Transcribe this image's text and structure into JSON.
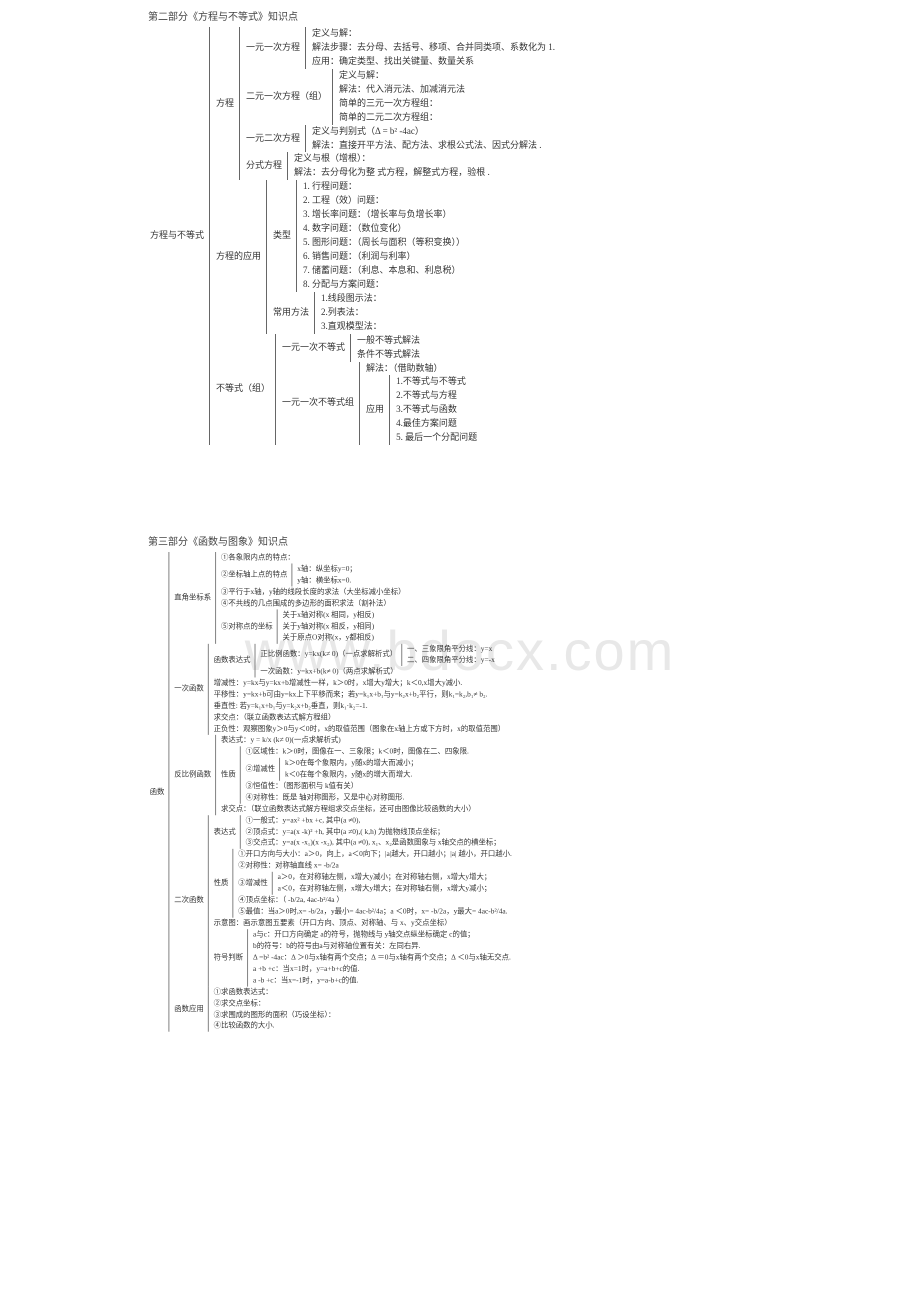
{
  "watermark": "www.bdocx.com",
  "part2": {
    "title": "第二部分《方程与不等式》知识点",
    "root": "方程与不等式",
    "fangcheng": {
      "label": "方程",
      "yiyuan": {
        "label": "一元一次方程",
        "l1": "定义与解：",
        "l2": "解法步骤：去分母、去括号、移项、合并同类项、系数化为  1.",
        "l3": "应用：确定类型、找出关键量、数量关系"
      },
      "eryuan": {
        "label": "二元一次方程（组）",
        "l1": "定义与解：",
        "l2": "解法：代入消元法、加减消元法",
        "l3": "简单的三元一次方程组：",
        "l4": "简单的二元二次方程组："
      },
      "yierci": {
        "label": "一元二次方程",
        "l1": "定义与判别式（Δ = b² -4ac）",
        "l2": "解法：直接开平方法、配方法、求根公式法、因式分解法  ."
      },
      "fenshi": {
        "label": "分式方程",
        "l1": "定义与根（增根）：",
        "l2": "解法：去分母化为整 式方程，解整式方程，验根  ."
      }
    },
    "yingyong": {
      "label": "方程的应用",
      "leixing": {
        "label": "类型",
        "i1": "1. 行程问题：",
        "i2": "2. 工程（效）问题：",
        "i3": "3. 增长率问题：（增长率与负增长率）",
        "i4": "4. 数字问题：（数位变化）",
        "i5": "5. 图形问题：（周长与面积（等积变换））",
        "i6": "6. 销售问题：（利润与利率）",
        "i7": "7. 储蓄问题：（利息、本息和、利息税）",
        "i8": "8. 分配与方案问题："
      },
      "fangfa": {
        "label": "常用方法",
        "i1": "1.线段图示法：",
        "i2": "2.列表法：",
        "i3": "3.直观模型法："
      }
    },
    "budengshi": {
      "label": "不等式（组）",
      "yiyuan": {
        "label": "一元一次不等式",
        "l1": "一般不等式解法",
        "l2": "条件不等式解法"
      },
      "zu": {
        "label": "一元一次不等式组",
        "l1": "解法：（借助数轴）",
        "yy": {
          "label": "应用",
          "i1": "1.不等式与不等式",
          "i2": "2.不等式与方程",
          "i3": "3.不等式与函数",
          "i4": "4.最佳方案问题",
          "i5": "5. 最后一个分配问题"
        }
      }
    }
  },
  "part3": {
    "title": "第三部分《函数与图象》知识点",
    "root": "函数",
    "zbx": {
      "label": "直角坐标系",
      "l1": "①各象限内点的特点：",
      "l2a": "②坐标轴上点的特点",
      "l2b": "x轴：纵坐标y=0；",
      "l2c": "y轴：横坐标x=0.",
      "l3": "③平行于x轴，y轴的线段长度的求法（大坐标减小坐标）",
      "l4": "④不共线的几点围成的多边形的面积求法（割补法）",
      "l5a": "⑤对称点的坐标",
      "l5b": "关于x轴对称(x 相同，y相反)",
      "l5c": "关于y轴对称(x 相反，y相同)",
      "l5d": "关于原点O对称(x，y都相反)"
    },
    "yici": {
      "label": "一次函数",
      "bds": {
        "label": "函数表达式",
        "zh": "正比例函数：y=kx(k≠ 0)（一点求解析式）",
        "zh1": "一、三象限角平分线：y=x",
        "zh2": "二、四象限角平分线：y=-x",
        "yc": "一次函数：y=kx+b(k≠ 0)（两点求解析式）"
      },
      "l1": "增减性：y=kx与y=kx+b增减性一样，k＞0时，x增大y增大；k＜0,x增大y减小.",
      "l2": "平移性：y=kx+b可由y=kx上下平移而来；若y=k₁x+b₁与y=k₂x+b₂平行，则k₁=k₂,b₁≠ b₂.",
      "l3": "垂直性:  若y=k₁x+b₁与y=k₂x+b₂垂直，则k₁·k₂=-1.",
      "l4": "求交点：（联立函数表达式解方程组）",
      "l5": "正负性：观察图象y＞0与y＜0时，x的取值范围（图象在x轴上方或下方时，x的取值范围）"
    },
    "fbl": {
      "label": "反比例函数",
      "bds": "表达式：y = k/x (k≠ 0)(一点求解析式)",
      "xz": {
        "label": "性质",
        "l1": "①区域性：k＞0时，图像在一、三象限；k＜0时，图像在二、四象限.",
        "l2a": "②增减性",
        "l2b": "k＞0在每个象限内，y随x的增大而减小；",
        "l2c": "k＜0在每个象限内，y随x的增大而增大.",
        "l3": "③恒值性：（图形面积与 k值有关）",
        "l4": "④对称性：既是 轴对称图形，又是中心对称图形."
      },
      "jd": "求交点：（联立函数表达式解方程组求交点坐标，还可由图像比较函数的大小）"
    },
    "erci": {
      "label": "二次函数",
      "bds": {
        "label": "表达式",
        "l1": "①一般式：y=ax² +bx +c, 其中(a ≠0),",
        "l2": "②顶点式：y=a(x -k)² +h, 其中(a ≠0),( k,h) 为抛物线顶点坐标；",
        "l3": "③交点式：y=a(x -x₁)(x -x₂), 其中(a ≠0),  x₁、x₂是函数图象与 x轴交点的横坐标；"
      },
      "xz": {
        "label": "性质",
        "l1": "①开口方向与大小：a＞0，向上，a＜0向下；|a|越大，开口越小；|a| 越小，开口越小.",
        "l2": "②对称性：对称轴直线 x= -b/2a",
        "l3a": "③增减性",
        "l3b": "a＞0，在对称轴左侧，x增大y减小；在对称轴右侧，x增大y增大；",
        "l3c": "a＜0，在对称轴左侧，x增大y增大；在对称轴右侧，x增大y减小；",
        "l4": "④顶点坐标：（ -b/2a, 4ac-b²/4a ）",
        "l5": "⑤最值：当a＞0时,x= -b/2a，y最小= 4ac-b²/4a；a ＜0时，x= -b/2a，y最大= 4ac-b²/4a."
      },
      "st": "示意图：画示意图五要素（开口方向、顶点、对称轴、与  x、y交点坐标）",
      "fh": {
        "label": "符号判断",
        "l1": "a与c：开口方向确定 a的符号，抛物线与 y轴交点纵坐标确定 c的值；",
        "l2": "b的符号：b的符号由a与对称轴位置有关：左同右异.",
        "l3": "Δ =b² -4ac：Δ ＞0与x轴有两个交点；Δ ＝0与x轴有两个交点；Δ ＜0与x轴无交点.",
        "l4": "a +b +c：当x=1时，y=a+b+c的值.",
        "l5": "a -b +c：当x=-1时，y=a-b+c的值."
      }
    },
    "yy": {
      "label": "函数应用",
      "l1": "①求函数表达式：",
      "l2": "②求交点坐标：",
      "l3": "③求围成的图形的面积（巧设坐标）：",
      "l4": "④比较函数的大小."
    }
  },
  "colors": {
    "text": "#333333",
    "border": "#666666",
    "watermark": "#e8e8e8",
    "background": "#ffffff"
  }
}
